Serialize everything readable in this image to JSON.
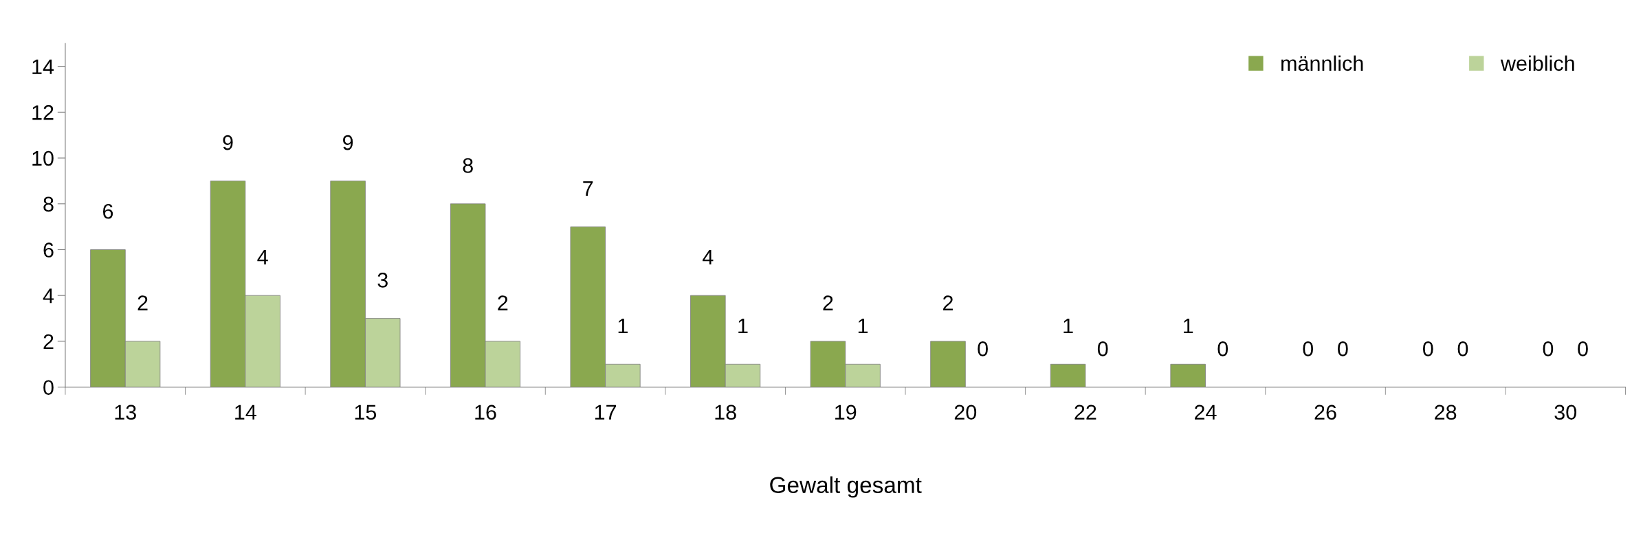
{
  "chart_data": {
    "type": "bar",
    "xlabel": "Gewalt gesamt",
    "categories": [
      "13",
      "14",
      "15",
      "16",
      "17",
      "18",
      "19",
      "20",
      "22",
      "24",
      "26",
      "28",
      "30"
    ],
    "series": [
      {
        "name": "männlich",
        "color": "#8aa84f",
        "values": [
          6,
          9,
          9,
          8,
          7,
          4,
          2,
          2,
          1,
          1,
          0,
          0,
          0
        ]
      },
      {
        "name": "weiblich",
        "color": "#bcd39a",
        "values": [
          2,
          4,
          3,
          2,
          1,
          1,
          1,
          0,
          0,
          0,
          0,
          0,
          0
        ]
      }
    ],
    "ylim": [
      0,
      15
    ],
    "yticks": [
      0,
      2,
      4,
      6,
      8,
      10,
      12,
      14
    ],
    "data_labels": true,
    "grid": false,
    "legend": "top right"
  }
}
